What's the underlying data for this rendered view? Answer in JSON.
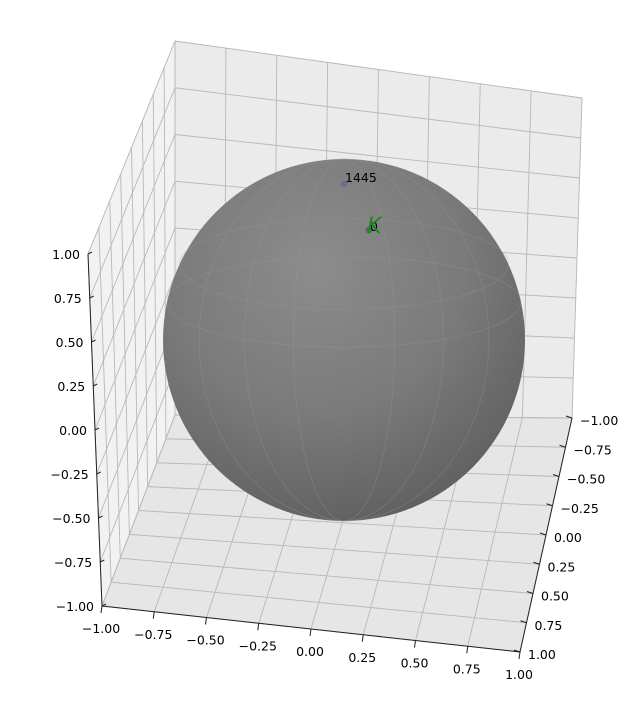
{
  "chart_data": {
    "type": "scatter",
    "projection": "3d",
    "title": "",
    "xlabel": "",
    "ylabel": "",
    "zlabel": "",
    "xlim": [
      -1.0,
      1.0
    ],
    "ylim": [
      -1.0,
      1.0
    ],
    "zlim": [
      -1.0,
      1.0
    ],
    "grid": true,
    "surface": {
      "shape": "unit-sphere",
      "color": "#808080",
      "opacity": 0.85
    },
    "x_ticks": [
      "−1.00",
      "−0.75",
      "−0.50",
      "−0.25",
      "0.00",
      "0.25",
      "0.50",
      "0.75",
      "1.00"
    ],
    "y_ticks": [
      "−1.00",
      "−0.75",
      "−0.50",
      "−0.25",
      "0.00",
      "0.25",
      "0.50",
      "0.75",
      "1.00"
    ],
    "z_ticks": [
      "−1.00",
      "−0.75",
      "−0.50",
      "−0.25",
      "0.00",
      "0.25",
      "0.50",
      "0.75",
      "1.00"
    ],
    "points": [
      {
        "label": "1445",
        "color": "#6a6a9a"
      },
      {
        "label": "0",
        "color": "#555577"
      }
    ],
    "marker": {
      "label": "K",
      "color": "#1a8a1a"
    }
  }
}
